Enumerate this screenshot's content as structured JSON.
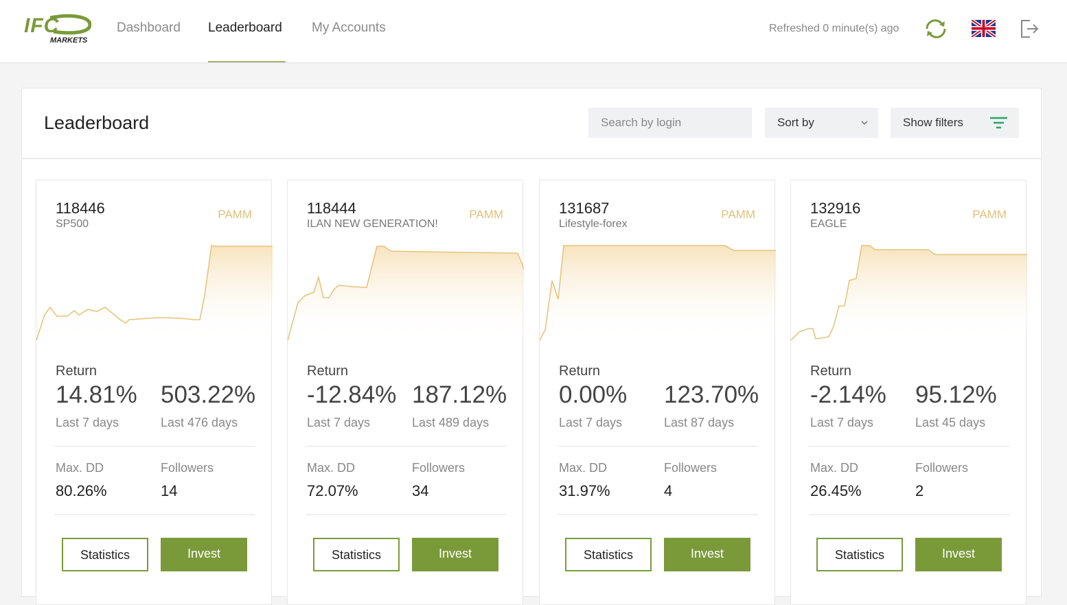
{
  "header": {
    "logo_mark": "IFC",
    "logo_text": "MARKETS",
    "nav": [
      "Dashboard",
      "Leaderboard",
      "My Accounts"
    ],
    "refreshed": "Refreshed 0 minute(s) ago"
  },
  "page": {
    "title": "Leaderboard",
    "search_placeholder": "Search by login",
    "sort": "Sort by",
    "filters": "Show filters"
  },
  "cards": [
    {
      "id": "118446",
      "name": "SP500",
      "type": "PAMM",
      "return_label": "Return",
      "return_short": "14.81%",
      "period_short": "Last 7 days",
      "return_total": "503.22%",
      "period_total": "Last 476 days",
      "max_dd_label": "Max. DD",
      "max_dd": "80.26%",
      "followers_label": "Followers",
      "followers": "14",
      "statistics": "Statistics",
      "invest": "Invest"
    },
    {
      "id": "118444",
      "name": "ILAN NEW GENERATION!",
      "type": "PAMM",
      "return_label": "Return",
      "return_short": "-12.84%",
      "period_short": "Last 7 days",
      "return_total": "187.12%",
      "period_total": "Last 489 days",
      "max_dd_label": "Max. DD",
      "max_dd": "72.07%",
      "followers_label": "Followers",
      "followers": "34",
      "statistics": "Statistics",
      "invest": "Invest"
    },
    {
      "id": "131687",
      "name": "Lifestyle-forex",
      "type": "PAMM",
      "return_label": "Return",
      "return_short": "0.00%",
      "period_short": "Last 7 days",
      "return_total": "123.70%",
      "period_total": "Last 87 days",
      "max_dd_label": "Max. DD",
      "max_dd": "31.97%",
      "followers_label": "Followers",
      "followers": "4",
      "statistics": "Statistics",
      "invest": "Invest"
    },
    {
      "id": "132916",
      "name": "EAGLE",
      "type": "PAMM",
      "return_label": "Return",
      "return_short": "-2.14%",
      "period_short": "Last 7 days",
      "return_total": "95.12%",
      "period_total": "Last 45 days",
      "max_dd_label": "Max. DD",
      "max_dd": "26.45%",
      "followers_label": "Followers",
      "followers": "2",
      "statistics": "Statistics",
      "invest": "Invest"
    }
  ]
}
